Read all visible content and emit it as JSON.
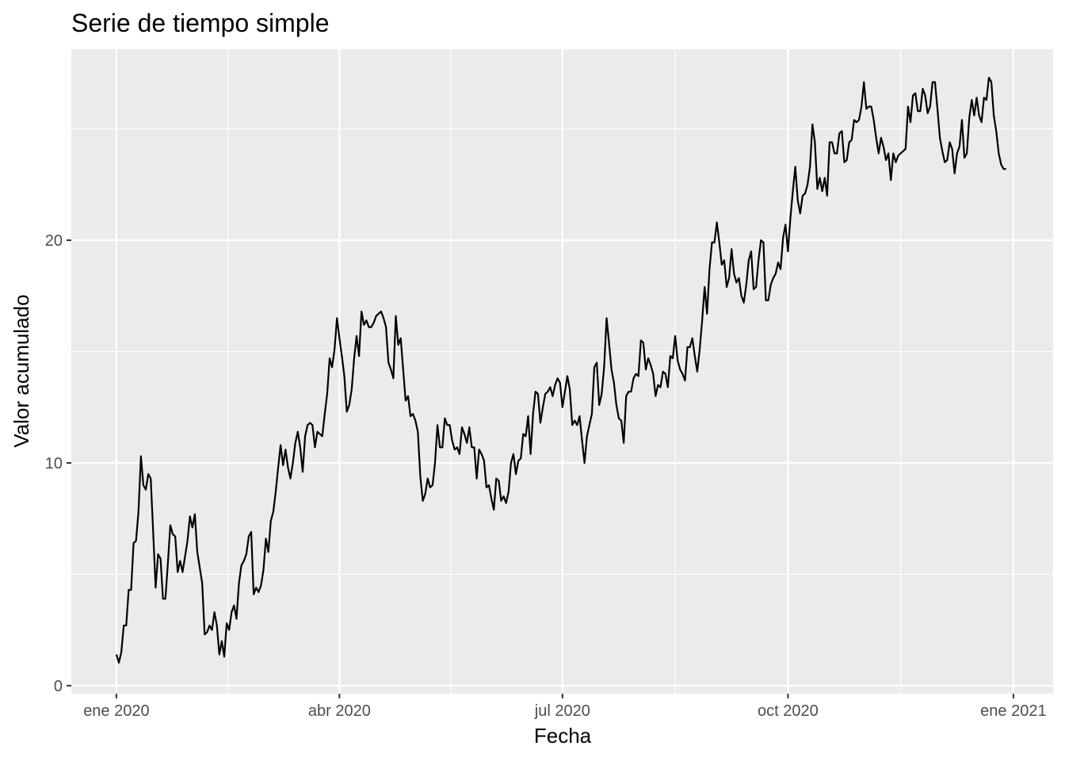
{
  "chart_data": {
    "type": "line",
    "title": "Serie de tiempo simple",
    "x_label": "Fecha",
    "y_label": "Valor acumulado",
    "color": "#000000",
    "grid": true,
    "xlim": [
      -18.4,
      382.2
    ],
    "xticks": [
      {
        "value": 0,
        "label": "ene 2020"
      },
      {
        "value": 91,
        "label": "abr 2020"
      },
      {
        "value": 182,
        "label": "jul 2020"
      },
      {
        "value": 274,
        "label": "oct 2020"
      },
      {
        "value": 366,
        "label": "ene 2021"
      }
    ],
    "ylim": [
      -0.36,
      28.58
    ],
    "yticks": [
      0,
      10,
      20
    ],
    "x": [
      0,
      1,
      2,
      3,
      4,
      5,
      6,
      7,
      8,
      9,
      10,
      11,
      12,
      13,
      14,
      15,
      16,
      17,
      18,
      19,
      20,
      21,
      22,
      23,
      24,
      25,
      26,
      27,
      28,
      29,
      30,
      31,
      32,
      33,
      34,
      35,
      36,
      37,
      38,
      39,
      40,
      41,
      42,
      43,
      44,
      45,
      46,
      47,
      48,
      49,
      50,
      51,
      52,
      53,
      54,
      55,
      56,
      57,
      58,
      59,
      60,
      61,
      62,
      63,
      64,
      65,
      66,
      67,
      68,
      69,
      70,
      71,
      72,
      73,
      74,
      75,
      76,
      77,
      78,
      79,
      80,
      81,
      82,
      83,
      84,
      85,
      86,
      87,
      88,
      89,
      90,
      91,
      92,
      93,
      94,
      95,
      96,
      97,
      98,
      99,
      100,
      101,
      102,
      103,
      104,
      105,
      106,
      107,
      108,
      109,
      110,
      111,
      112,
      113,
      114,
      115,
      116,
      117,
      118,
      119,
      120,
      121,
      122,
      123,
      124,
      125,
      126,
      127,
      128,
      129,
      130,
      131,
      132,
      133,
      134,
      135,
      136,
      137,
      138,
      139,
      140,
      141,
      142,
      143,
      144,
      145,
      146,
      147,
      148,
      149,
      150,
      151,
      152,
      153,
      154,
      155,
      156,
      157,
      158,
      159,
      160,
      161,
      162,
      163,
      164,
      165,
      166,
      167,
      168,
      169,
      170,
      171,
      172,
      173,
      174,
      175,
      176,
      177,
      178,
      179,
      180,
      181,
      182,
      183,
      184,
      185,
      186,
      187,
      188,
      189,
      190,
      191,
      192,
      193,
      194,
      195,
      196,
      197,
      198,
      199,
      200,
      201,
      202,
      203,
      204,
      205,
      206,
      207,
      208,
      209,
      210,
      211,
      212,
      213,
      214,
      215,
      216,
      217,
      218,
      219,
      220,
      221,
      222,
      223,
      224,
      225,
      226,
      227,
      228,
      229,
      230,
      231,
      232,
      233,
      234,
      235,
      236,
      237,
      238,
      239,
      240,
      241,
      242,
      243,
      244,
      245,
      246,
      247,
      248,
      249,
      250,
      251,
      252,
      253,
      254,
      255,
      256,
      257,
      258,
      259,
      260,
      261,
      262,
      263,
      264,
      265,
      266,
      267,
      268,
      269,
      270,
      271,
      272,
      273,
      274,
      275,
      276,
      277,
      278,
      279,
      280,
      281,
      282,
      283,
      284,
      285,
      286,
      287,
      288,
      289,
      290,
      291,
      292,
      293,
      294,
      295,
      296,
      297,
      298,
      299,
      300,
      301,
      302,
      303,
      304,
      305,
      306,
      307,
      308,
      309,
      310,
      311,
      312,
      313,
      314,
      315,
      316,
      317,
      318,
      319,
      320,
      321,
      322,
      323,
      324,
      325,
      326,
      327,
      328,
      329,
      330,
      331,
      332,
      333,
      334,
      335,
      336,
      337,
      338,
      339,
      340,
      341,
      342,
      343,
      344,
      345,
      346,
      347,
      348,
      349,
      350,
      351,
      352,
      353,
      354,
      355,
      356,
      357,
      358,
      359,
      360,
      361,
      362,
      363
    ],
    "values": [
      1.4,
      1.03,
      1.5,
      2.7,
      2.7,
      4.3,
      4.3,
      6.4,
      6.5,
      7.8,
      10.3,
      9.0,
      8.8,
      9.5,
      9.3,
      6.9,
      4.4,
      5.9,
      5.7,
      3.9,
      3.9,
      5.5,
      7.2,
      6.8,
      6.7,
      5.1,
      5.6,
      5.1,
      5.8,
      6.5,
      7.6,
      7.1,
      7.7,
      6.0,
      5.3,
      4.6,
      2.3,
      2.4,
      2.7,
      2.5,
      3.3,
      2.7,
      1.4,
      2.0,
      1.3,
      2.8,
      2.5,
      3.3,
      3.6,
      3.0,
      4.6,
      5.4,
      5.6,
      5.9,
      6.7,
      6.9,
      4.1,
      4.4,
      4.2,
      4.5,
      5.2,
      6.6,
      6.0,
      7.4,
      7.8,
      8.7,
      9.8,
      10.8,
      9.9,
      10.6,
      9.8,
      9.3,
      10.0,
      10.9,
      11.4,
      10.7,
      9.6,
      11.2,
      11.7,
      11.8,
      11.7,
      10.7,
      11.4,
      11.3,
      11.2,
      12.2,
      13.1,
      14.7,
      14.3,
      15.1,
      16.5,
      15.6,
      14.8,
      13.9,
      12.3,
      12.6,
      13.3,
      14.7,
      15.7,
      14.8,
      16.8,
      16.2,
      16.4,
      16.1,
      16.1,
      16.3,
      16.6,
      16.7,
      16.8,
      16.5,
      16.1,
      14.5,
      14.2,
      13.8,
      16.6,
      15.3,
      15.6,
      14.2,
      12.8,
      13.0,
      12.1,
      12.2,
      11.9,
      11.4,
      9.4,
      8.3,
      8.6,
      9.3,
      8.9,
      9.0,
      10.0,
      11.7,
      10.7,
      10.7,
      12.0,
      11.7,
      11.7,
      11.0,
      10.6,
      10.7,
      10.4,
      11.6,
      11.3,
      10.9,
      11.6,
      10.7,
      10.7,
      9.3,
      10.6,
      10.4,
      10.1,
      8.9,
      9.0,
      8.4,
      7.9,
      9.3,
      9.2,
      8.3,
      8.5,
      8.2,
      8.7,
      10.0,
      10.4,
      9.5,
      10.1,
      10.2,
      11.3,
      11.2,
      12.1,
      10.4,
      12.2,
      13.2,
      13.1,
      11.8,
      12.5,
      13.1,
      13.2,
      13.4,
      13.0,
      13.5,
      13.8,
      13.6,
      12.5,
      13.2,
      13.9,
      13.3,
      11.7,
      11.9,
      11.7,
      12.1,
      11.0,
      10.0,
      11.2,
      11.7,
      12.2,
      14.3,
      14.5,
      12.6,
      13.1,
      14.3,
      16.5,
      15.4,
      14.2,
      13.6,
      12.6,
      12.0,
      11.9,
      10.9,
      13.0,
      13.2,
      13.2,
      13.8,
      14.0,
      13.9,
      15.5,
      15.4,
      14.2,
      14.7,
      14.4,
      14.0,
      13.0,
      13.5,
      13.4,
      14.1,
      14.0,
      13.4,
      14.8,
      14.7,
      15.7,
      14.6,
      14.2,
      14.0,
      13.7,
      15.2,
      15.2,
      15.6,
      14.8,
      14.1,
      15.1,
      16.4,
      17.9,
      16.7,
      18.7,
      19.9,
      19.9,
      20.8,
      19.9,
      18.9,
      19.1,
      17.9,
      18.3,
      19.6,
      18.5,
      18.1,
      18.3,
      17.5,
      17.2,
      18.0,
      19.1,
      19.5,
      17.8,
      17.9,
      19.1,
      20.0,
      19.9,
      17.3,
      17.3,
      18.0,
      18.3,
      18.5,
      19.0,
      18.7,
      20.1,
      20.7,
      19.5,
      21.0,
      22.2,
      23.3,
      21.8,
      21.2,
      22.0,
      22.1,
      22.5,
      23.3,
      25.2,
      24.4,
      22.3,
      22.8,
      22.2,
      22.8,
      22.0,
      24.4,
      24.4,
      23.9,
      23.9,
      24.8,
      24.9,
      23.5,
      23.6,
      24.4,
      24.5,
      25.4,
      25.3,
      25.4,
      26.0,
      27.1,
      25.9,
      26.0,
      26.0,
      25.4,
      24.6,
      23.9,
      24.6,
      24.2,
      23.6,
      23.9,
      22.7,
      23.9,
      23.5,
      23.8,
      23.9,
      24.0,
      24.1,
      26.0,
      25.3,
      26.5,
      26.6,
      25.8,
      25.8,
      26.8,
      26.5,
      25.7,
      26.0,
      27.1,
      27.1,
      25.9,
      24.6,
      24.0,
      23.5,
      23.6,
      24.4,
      24.1,
      23.0,
      23.9,
      24.2,
      25.4,
      23.7,
      23.9,
      25.5,
      26.3,
      25.6,
      26.4,
      25.6,
      25.3,
      26.4,
      26.3,
      27.3,
      27.1,
      25.6,
      24.9,
      23.9,
      23.4,
      23.2,
      23.2
    ]
  }
}
